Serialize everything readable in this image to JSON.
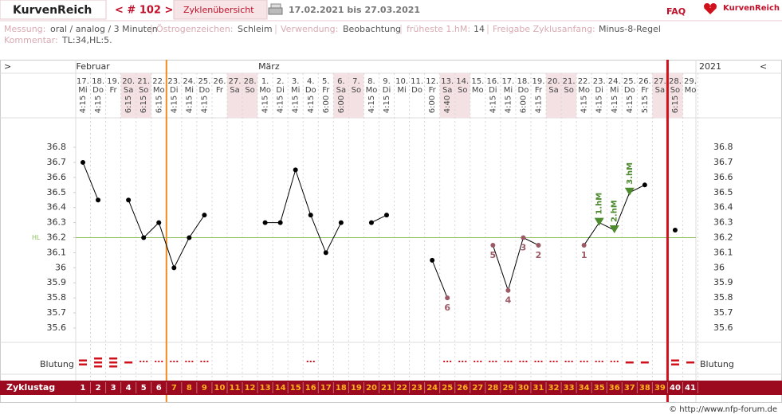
{
  "header": {
    "app_name": "KurvenReich",
    "cycle_nav": "< # 102 >",
    "overview_tab": "Zyklenübersicht",
    "date_range": "17.02.2021 bis 27.03.2021",
    "faq": "FAQ",
    "logo_text": "KurvenReich"
  },
  "info": {
    "fields": [
      {
        "label": "Messung:",
        "value": "oral / analog / 3 Minuten"
      },
      {
        "label": "Östrogenzeichen:",
        "value": "Schleim"
      },
      {
        "label": "Verwendung:",
        "value": "Beobachtung"
      },
      {
        "label": "früheste 1.hM:",
        "value": "14"
      },
      {
        "label": "Freigabe Zyklusanfang:",
        "value": "Minus-8-Regel"
      }
    ],
    "comment": {
      "label": "Kommentar:",
      "value": "TL:34,HL:5."
    }
  },
  "chart_data": {
    "type": "line",
    "nav_left": ">",
    "nav_right": "<",
    "year": "2021",
    "month_labels": [
      "Februar",
      null,
      null,
      null,
      null,
      null,
      null,
      null,
      null,
      null,
      null,
      null,
      "März",
      null,
      null,
      null,
      null,
      null,
      null,
      null,
      null,
      null,
      null,
      null,
      null,
      null,
      null,
      null,
      null,
      null,
      null,
      null,
      null,
      null,
      null,
      null,
      null,
      null,
      null,
      null,
      null
    ],
    "days": [
      "17.",
      "18.",
      "19.",
      "20.",
      "21.",
      "22.",
      "23.",
      "24.",
      "25.",
      "26.",
      "27.",
      "28.",
      "1.",
      "2.",
      "3.",
      "4.",
      "5.",
      "6.",
      "7.",
      "8.",
      "9.",
      "10.",
      "11.",
      "12.",
      "13.",
      "14.",
      "15.",
      "16.",
      "17.",
      "18.",
      "19.",
      "20.",
      "21.",
      "22.",
      "23.",
      "24.",
      "25.",
      "26.",
      "27.",
      "28.",
      "29."
    ],
    "weekdays": [
      "Mi",
      "Do",
      "Fr",
      "Sa",
      "So",
      "Mo",
      "Di",
      "Mi",
      "Do",
      "Fr",
      "Sa",
      "So",
      "Mo",
      "Di",
      "Mi",
      "Do",
      "Fr",
      "Sa",
      "So",
      "Mo",
      "Di",
      "Mi",
      "Do",
      "Fr",
      "Sa",
      "So",
      "Mo",
      "Di",
      "Mi",
      "Do",
      "Fr",
      "Sa",
      "So",
      "Mo",
      "Di",
      "Mi",
      "Do",
      "Fr",
      "Sa",
      "So",
      "Mo"
    ],
    "times": [
      "4:15",
      "4:15",
      null,
      "6:15",
      "6:15",
      "6:15",
      "4:15",
      "4:15",
      "4:15",
      null,
      null,
      null,
      "4:15",
      "4:15",
      "4:15",
      "4:15",
      "6:00",
      "6:00",
      null,
      "4:15",
      "4:15",
      null,
      null,
      "6:00",
      "4:40",
      null,
      null,
      "4:15",
      "4:15",
      "6:00",
      "4:15",
      null,
      null,
      "4:15",
      "4:15",
      "4:15",
      "4:15",
      "5:15",
      null,
      "6:15",
      null
    ],
    "shaded_days": [
      3,
      4,
      10,
      11,
      17,
      18,
      24,
      25,
      31,
      32,
      38,
      39
    ],
    "values": [
      36.7,
      36.45,
      null,
      36.45,
      36.2,
      36.3,
      36,
      36.2,
      36.35,
      null,
      null,
      null,
      36.3,
      36.3,
      36.65,
      36.35,
      36.1,
      36.3,
      null,
      36.3,
      36.35,
      null,
      null,
      36.05,
      35.8,
      null,
      null,
      36.15,
      35.85,
      36.2,
      36.15,
      null,
      null,
      36.15,
      36.3,
      36.25,
      36.5,
      36.55,
      null,
      36.25,
      null
    ],
    "color": "#000000",
    "marked_color": "#9b5a66",
    "hm_color": "#4e8a2e",
    "low_labels": [
      null,
      null,
      null,
      null,
      null,
      null,
      null,
      null,
      null,
      null,
      null,
      null,
      null,
      null,
      null,
      null,
      null,
      null,
      null,
      null,
      null,
      null,
      null,
      null,
      "6",
      null,
      null,
      "5",
      "4",
      "3",
      "2",
      null,
      null,
      "1",
      null,
      null,
      null,
      null,
      null,
      null,
      null
    ],
    "hm_labels": [
      null,
      null,
      null,
      null,
      null,
      null,
      null,
      null,
      null,
      null,
      null,
      null,
      null,
      null,
      null,
      null,
      null,
      null,
      null,
      null,
      null,
      null,
      null,
      null,
      null,
      null,
      null,
      null,
      null,
      null,
      null,
      null,
      null,
      null,
      "1.hM",
      "2.hM",
      "3.hM",
      null,
      null,
      null,
      null
    ],
    "ylim": [
      35.5,
      37.0
    ],
    "yticks": [
      35.6,
      35.7,
      35.8,
      35.9,
      36,
      36.1,
      36.2,
      36.3,
      36.4,
      36.5,
      36.6,
      36.7,
      36.8
    ],
    "hl": {
      "value": 36.2,
      "label": "HL",
      "color": "#8cbf5a"
    },
    "cycle_start_line": {
      "after": 5,
      "color": "#f08a1c"
    },
    "cycle_end_line": {
      "after": 38,
      "color": "#d0101a"
    },
    "bleeding_label": "Blutung",
    "bleeding": [
      3,
      4,
      4,
      2,
      1,
      1,
      1,
      1,
      1,
      null,
      null,
      null,
      null,
      null,
      null,
      1,
      null,
      null,
      null,
      null,
      null,
      null,
      null,
      null,
      1,
      1,
      1,
      1,
      1,
      1,
      1,
      1,
      1,
      1,
      1,
      1,
      2,
      2,
      null,
      3,
      2
    ],
    "cycle_day_label": "Zyklustag",
    "cycle_days": [
      1,
      2,
      3,
      4,
      5,
      6,
      7,
      8,
      9,
      10,
      11,
      12,
      13,
      14,
      15,
      16,
      17,
      18,
      19,
      20,
      21,
      22,
      23,
      24,
      25,
      26,
      27,
      28,
      29,
      30,
      31,
      32,
      33,
      34,
      35,
      36,
      37,
      38,
      39,
      40,
      41
    ],
    "footer": "© http://www.nfp-forum.de"
  }
}
